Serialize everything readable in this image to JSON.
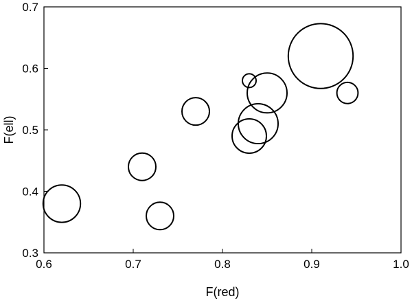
{
  "chart_data": {
    "type": "scatter",
    "variant": "bubble",
    "title": "",
    "xlabel": "F(red)",
    "ylabel": "F(ell)",
    "xlim": [
      0.6,
      1.0
    ],
    "ylim": [
      0.3,
      0.7
    ],
    "xticks": [
      "0.6",
      "0.7",
      "0.8",
      "0.9",
      "1.0"
    ],
    "yticks": [
      "0.3",
      "0.4",
      "0.5",
      "0.6",
      "0.7"
    ],
    "grid": false,
    "legend": "none",
    "marker": "hollow-circle",
    "marker_color": "#000000",
    "points": [
      {
        "x": 0.62,
        "y": 0.38,
        "size": 1.36
      },
      {
        "x": 0.71,
        "y": 0.44,
        "size": 1.0
      },
      {
        "x": 0.73,
        "y": 0.36,
        "size": 1.0
      },
      {
        "x": 0.77,
        "y": 0.53,
        "size": 1.0
      },
      {
        "x": 0.83,
        "y": 0.58,
        "size": 0.5
      },
      {
        "x": 0.83,
        "y": 0.49,
        "size": 1.25
      },
      {
        "x": 0.84,
        "y": 0.51,
        "size": 1.45
      },
      {
        "x": 0.85,
        "y": 0.56,
        "size": 1.45
      },
      {
        "x": 0.91,
        "y": 0.62,
        "size": 2.36
      },
      {
        "x": 0.94,
        "y": 0.56,
        "size": 0.77
      }
    ]
  }
}
